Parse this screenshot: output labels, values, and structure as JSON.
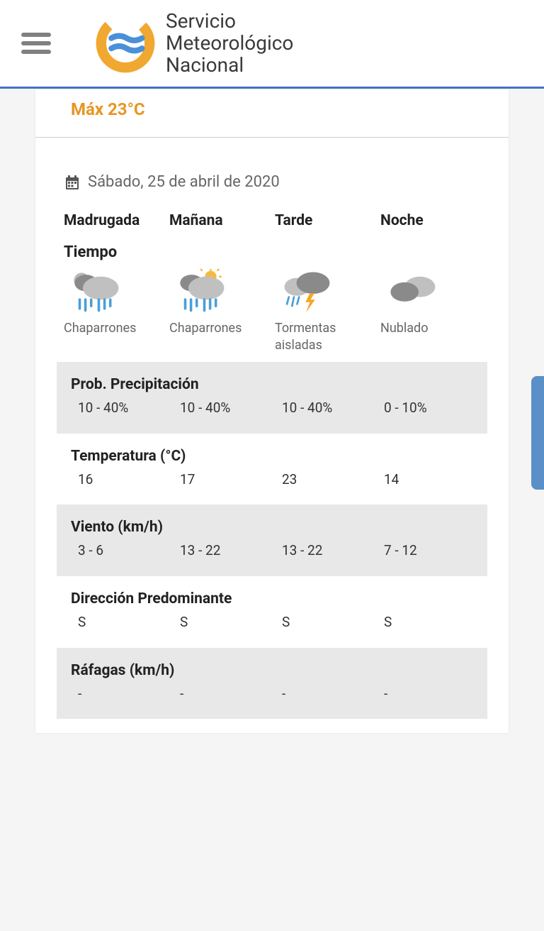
{
  "header": {
    "org_line1": "Servicio",
    "org_line2": "Meteorológico",
    "org_line3": "Nacional",
    "logo_colors": {
      "ring": "#f0a830",
      "waves": "#4a90d9"
    },
    "border_color": "#4472c4"
  },
  "summary": {
    "max_temp_label": "Máx 23°C",
    "max_temp_color": "#e69623"
  },
  "forecast": {
    "date_label": "Sábado, 25 de abril de 2020",
    "periods": [
      "Madrugada",
      "Mañana",
      "Tarde",
      "Noche"
    ],
    "weather_section_label": "Tiempo",
    "conditions": [
      {
        "label": "Chaparrones",
        "icon": "showers-night"
      },
      {
        "label": "Chaparrones",
        "icon": "showers-day"
      },
      {
        "label": "Tormentas aisladas",
        "icon": "storms"
      },
      {
        "label": "Nublado",
        "icon": "cloudy"
      }
    ],
    "sections": [
      {
        "title": "Prob. Precipitación",
        "shaded": true,
        "values": [
          "10 - 40%",
          "10 - 40%",
          "10 - 40%",
          "0 - 10%"
        ]
      },
      {
        "title": "Temperatura (°C)",
        "shaded": false,
        "values": [
          "16",
          "17",
          "23",
          "14"
        ]
      },
      {
        "title": "Viento (km/h)",
        "shaded": true,
        "values": [
          "3 - 6",
          "13 - 22",
          "13 - 22",
          "7 - 12"
        ]
      },
      {
        "title": "Dirección Predominante",
        "shaded": false,
        "values": [
          "S",
          "S",
          "S",
          "S"
        ]
      },
      {
        "title": "Ráfagas (km/h)",
        "shaded": true,
        "values": [
          "-",
          "-",
          "-",
          "-"
        ]
      }
    ]
  },
  "colors": {
    "shaded_bg": "#e8e8e8",
    "text_primary": "#222222",
    "text_secondary": "#666666",
    "cloud_dark": "#8a8a8a",
    "cloud_light": "#c0c0c0",
    "rain": "#4a9fd8",
    "lightning": "#f5a623",
    "sun": "#f5b840",
    "moon": "#b8b8b8"
  }
}
